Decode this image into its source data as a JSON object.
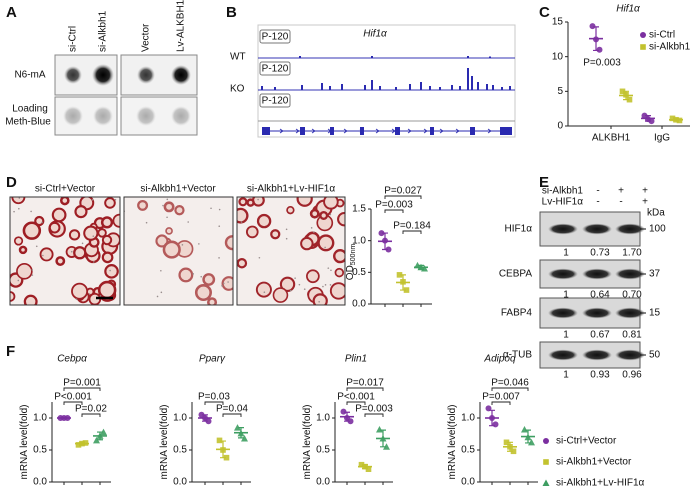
{
  "panel_labels": [
    "A",
    "B",
    "C",
    "D",
    "E",
    "F"
  ],
  "blot_a": {
    "columns": [
      "si-Ctrl",
      "si-Alkbh1",
      "Vector",
      "Lv-ALKBH1"
    ],
    "rows": [
      [
        "N6-mA"
      ],
      [
        "Loading",
        "Meth-Blue"
      ]
    ]
  },
  "track_b": {
    "gene": "Hif1α",
    "samples": [
      "WT",
      "KO"
    ],
    "scale_labels": [
      "P-120",
      "P-120",
      "P-120"
    ]
  },
  "images_d": {
    "labels": [
      "si-Ctrl+Vector",
      "si-Alkbh1+Vector",
      "si-Alkbh1+Lv-HIF1α"
    ]
  },
  "western_e": {
    "conditions": [
      {
        "label": "si-Alkbh1",
        "signs": [
          "-",
          "+",
          "+"
        ]
      },
      {
        "label": "Lv-HIF1α",
        "signs": [
          "-",
          "-",
          "+"
        ]
      }
    ],
    "unit": "kDa",
    "bands": [
      {
        "name": "HIF1α",
        "marker": "100",
        "quant": [
          "1",
          "0.73",
          "1.70"
        ]
      },
      {
        "name": "CEBPA",
        "marker": "37",
        "quant": [
          "1",
          "0.64",
          "0.70"
        ]
      },
      {
        "name": "FABP4",
        "marker": "15",
        "quant": [
          "1",
          "0.67",
          "0.81"
        ]
      },
      {
        "name": "α-TUB",
        "marker": "50",
        "quant": [
          "1",
          "0.93",
          "0.96"
        ]
      }
    ]
  },
  "groups": [
    {
      "name": "si-Ctrl+Vector",
      "color": "#7b2fa0",
      "marker": "circle"
    },
    {
      "name": "si-Alkbh1+Vector",
      "color": "#c2c22e",
      "marker": "square"
    },
    {
      "name": "si-Alkbh1+Lv-HIF1α",
      "color": "#3e9e62",
      "marker": "triangle"
    }
  ],
  "chart_data": [
    {
      "type": "dot",
      "title": "Hif1α",
      "categories": [
        "ALKBH1",
        "IgG"
      ],
      "series": [
        {
          "name": "si-Ctrl",
          "color": "#7b2fa0",
          "marker": "circle",
          "values": [
            [
              14.4,
              12.5,
              11.0
            ],
            [
              1.5,
              1.0,
              0.7
            ]
          ],
          "means": [
            12.6,
            1.1
          ],
          "sds": [
            1.7,
            0.4
          ]
        },
        {
          "name": "si-Alkbh1",
          "color": "#c2c22e",
          "marker": "square",
          "values": [
            [
              5.0,
              4.5,
              3.8
            ],
            [
              1.1,
              0.9,
              0.8
            ]
          ],
          "means": [
            4.4,
            0.9
          ],
          "sds": [
            0.6,
            0.15
          ]
        }
      ],
      "ylim": [
        0,
        15
      ],
      "yticks": [
        0,
        5,
        10,
        15
      ],
      "annotation": "P=0.003",
      "legend": "upper right"
    },
    {
      "type": "dot",
      "y_label": "OD",
      "y_label_sub": "500nm",
      "series": [
        {
          "values": [
            [
              1.12,
              1.0,
              0.86
            ]
          ],
          "means": [
            0.99
          ],
          "sds": [
            0.13
          ]
        },
        {
          "values": [
            [
              0.46,
              0.35,
              0.22
            ]
          ],
          "means": [
            0.34
          ],
          "sds": [
            0.12
          ]
        },
        {
          "values": [
            [
              0.61,
              0.58,
              0.56
            ]
          ],
          "means": [
            0.58
          ],
          "sds": [
            0.03
          ]
        }
      ],
      "ylim": [
        0,
        1.5
      ],
      "yticks": [
        {
          "value": 0,
          "label": "0.0"
        },
        {
          "value": 0.5,
          "label": "0.5"
        },
        {
          "value": 1,
          "label": "1.0"
        },
        {
          "value": 1.5,
          "label": "1.5"
        }
      ],
      "p_values": {
        "g1_g3": "P=0.027",
        "g1_g2": "P=0.003",
        "g2_g3": "P=0.184"
      }
    },
    {
      "type": "dot",
      "title": "Cebpα",
      "y_label": "mRNA level(fold)",
      "series": [
        {
          "values": [
            [
              1.0,
              1.0,
              1.0
            ]
          ],
          "means": [
            1.0
          ],
          "sds": [
            0.01
          ]
        },
        {
          "values": [
            [
              0.58,
              0.6,
              0.61
            ]
          ],
          "means": [
            0.6
          ],
          "sds": [
            0.02
          ]
        },
        {
          "values": [
            [
              0.65,
              0.72,
              0.78
            ]
          ],
          "means": [
            0.72
          ],
          "sds": [
            0.06
          ]
        }
      ],
      "ylim": [
        0,
        1.25
      ],
      "yticks": [
        {
          "value": 0,
          "label": "0.0"
        },
        {
          "value": 0.5,
          "label": "0.5"
        },
        {
          "value": 1,
          "label": "1.0"
        }
      ],
      "p_values": {
        "g1_g3": "P=0.001",
        "g1_g2": "P<0.001",
        "g2_g3": "P=0.02"
      }
    },
    {
      "type": "dot",
      "title": "Pparγ",
      "y_label": "mRNA level(fold)",
      "series": [
        {
          "values": [
            [
              1.05,
              1.0,
              0.95
            ]
          ],
          "means": [
            1.0
          ],
          "sds": [
            0.05
          ]
        },
        {
          "values": [
            [
              0.65,
              0.5,
              0.38
            ]
          ],
          "means": [
            0.51
          ],
          "sds": [
            0.13
          ]
        },
        {
          "values": [
            [
              0.85,
              0.76,
              0.68
            ]
          ],
          "means": [
            0.77
          ],
          "sds": [
            0.08
          ]
        }
      ],
      "ylim": [
        0,
        1.25
      ],
      "yticks": [
        {
          "value": 0,
          "label": "0.0"
        },
        {
          "value": 0.5,
          "label": "0.5"
        },
        {
          "value": 1,
          "label": "1.0"
        }
      ],
      "p_values": {
        "g1_g2": "P=0.03",
        "g2_g3": "P=0.04"
      }
    },
    {
      "type": "dot",
      "title": "Plin1",
      "y_label": "mRNA level(fold)",
      "series": [
        {
          "values": [
            [
              1.1,
              1.0,
              0.95
            ]
          ],
          "means": [
            1.02
          ],
          "sds": [
            0.07
          ]
        },
        {
          "values": [
            [
              0.27,
              0.24,
              0.2
            ]
          ],
          "means": [
            0.24
          ],
          "sds": [
            0.03
          ]
        },
        {
          "values": [
            [
              0.82,
              0.68,
              0.55
            ]
          ],
          "means": [
            0.68
          ],
          "sds": [
            0.13
          ]
        }
      ],
      "ylim": [
        0,
        1.25
      ],
      "yticks": [
        {
          "value": 0,
          "label": "0.0"
        },
        {
          "value": 0.5,
          "label": "0.5"
        },
        {
          "value": 1,
          "label": "1.0"
        }
      ],
      "p_values": {
        "g1_g3": "P=0.017",
        "g1_g2": "P<0.001",
        "g2_g3": "P=0.003"
      }
    },
    {
      "type": "dot",
      "title": "Adipoq",
      "y_label": "mRNA level(fold)",
      "series": [
        {
          "values": [
            [
              1.15,
              1.0,
              0.9
            ]
          ],
          "means": [
            1.0
          ],
          "sds": [
            0.12
          ]
        },
        {
          "values": [
            [
              0.62,
              0.55,
              0.48
            ]
          ],
          "means": [
            0.55
          ],
          "sds": [
            0.07
          ]
        },
        {
          "values": [
            [
              0.82,
              0.7,
              0.62
            ]
          ],
          "means": [
            0.71
          ],
          "sds": [
            0.1
          ]
        }
      ],
      "ylim": [
        0,
        1.25
      ],
      "yticks": [
        {
          "value": 0,
          "label": "0.0"
        },
        {
          "value": 0.5,
          "label": "0.5"
        },
        {
          "value": 1,
          "label": "1.0"
        }
      ],
      "p_values": {
        "g1_g3": "P=0.046",
        "g1_g2": "P=0.007"
      }
    }
  ]
}
